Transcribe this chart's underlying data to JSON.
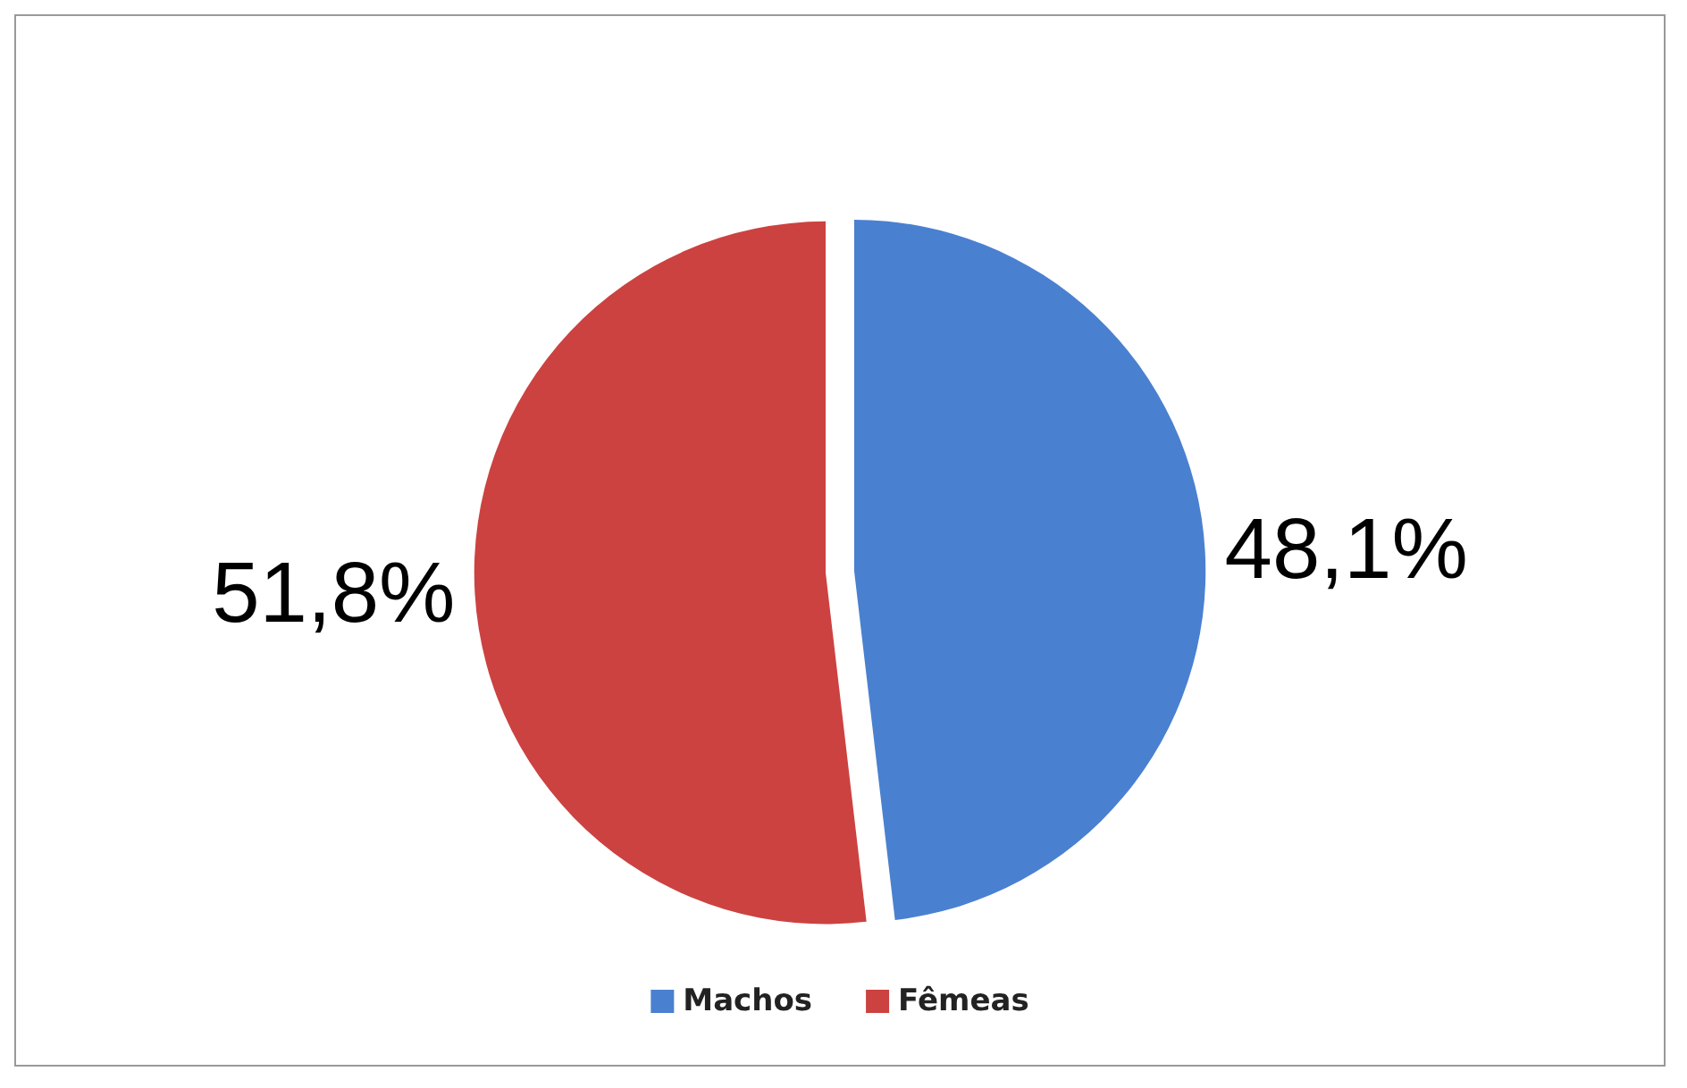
{
  "chart_data": {
    "type": "pie",
    "categories": [
      "Machos",
      "Fêmeas"
    ],
    "values": [
      48.1,
      51.8
    ],
    "colors": [
      "#4a80d0",
      "#cc4240"
    ],
    "value_labels": [
      "48,1%",
      "51,8%"
    ],
    "legend": "bottom"
  }
}
